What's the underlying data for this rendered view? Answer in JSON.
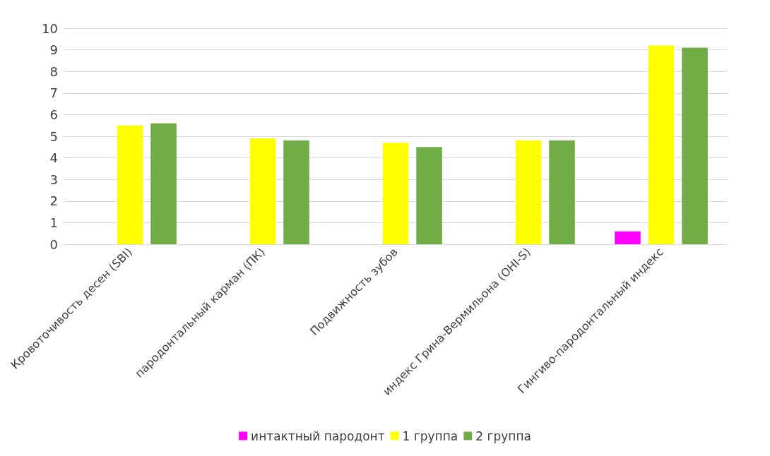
{
  "chart_data": {
    "type": "bar",
    "categories": [
      "Кровоточивость десен (SBI)",
      "пародонтальный карман (ПК)",
      "Подвижность зубов",
      "индекс Грина-Вермильона (OHI-S)",
      "Гингиво-пародонтальный индекс"
    ],
    "series": [
      {
        "name": "интактный пародонт",
        "color": "#ff00ff",
        "values": [
          0,
          0,
          0,
          0,
          0.6
        ]
      },
      {
        "name": "1 группа",
        "color": "#ffff00",
        "values": [
          5.5,
          4.9,
          4.7,
          4.8,
          9.2
        ]
      },
      {
        "name": "2 группа",
        "color": "#70ad47",
        "values": [
          5.6,
          4.8,
          4.5,
          4.8,
          9.1
        ]
      }
    ],
    "ylim": [
      0,
      10
    ],
    "yticks": [
      0,
      1,
      2,
      3,
      4,
      5,
      6,
      7,
      8,
      9,
      10
    ],
    "grid": true,
    "legend": "bottom"
  }
}
